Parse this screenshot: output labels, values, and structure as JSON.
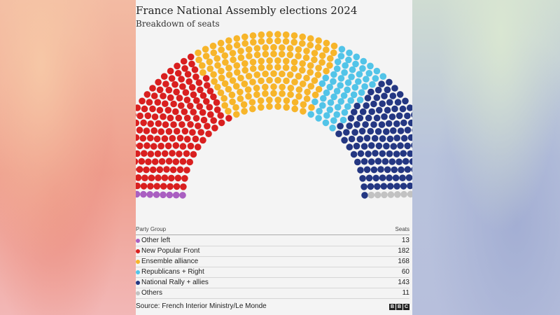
{
  "chart_data": {
    "type": "hemicycle",
    "title": "France National Assembly elections 2024",
    "subtitle": "Breakdown of seats",
    "table_header": {
      "group": "Party Group",
      "seats": "Seats"
    },
    "series": [
      {
        "name": "Other left",
        "value": 13,
        "color": "#a95fc1"
      },
      {
        "name": "New Popular Front",
        "value": 182,
        "color": "#d91f1f"
      },
      {
        "name": "Ensemble alliance",
        "value": 168,
        "color": "#f7b52a"
      },
      {
        "name": "Republicans + Right",
        "value": 60,
        "color": "#52c4e8"
      },
      {
        "name": "National Rally + allies",
        "value": 143,
        "color": "#243782"
      },
      {
        "name": "Others",
        "value": 11,
        "color": "#c2c2c2"
      }
    ],
    "total_seats": 577,
    "source": "Source: French Interior Ministry/Le Monde",
    "logo": "BBC"
  }
}
